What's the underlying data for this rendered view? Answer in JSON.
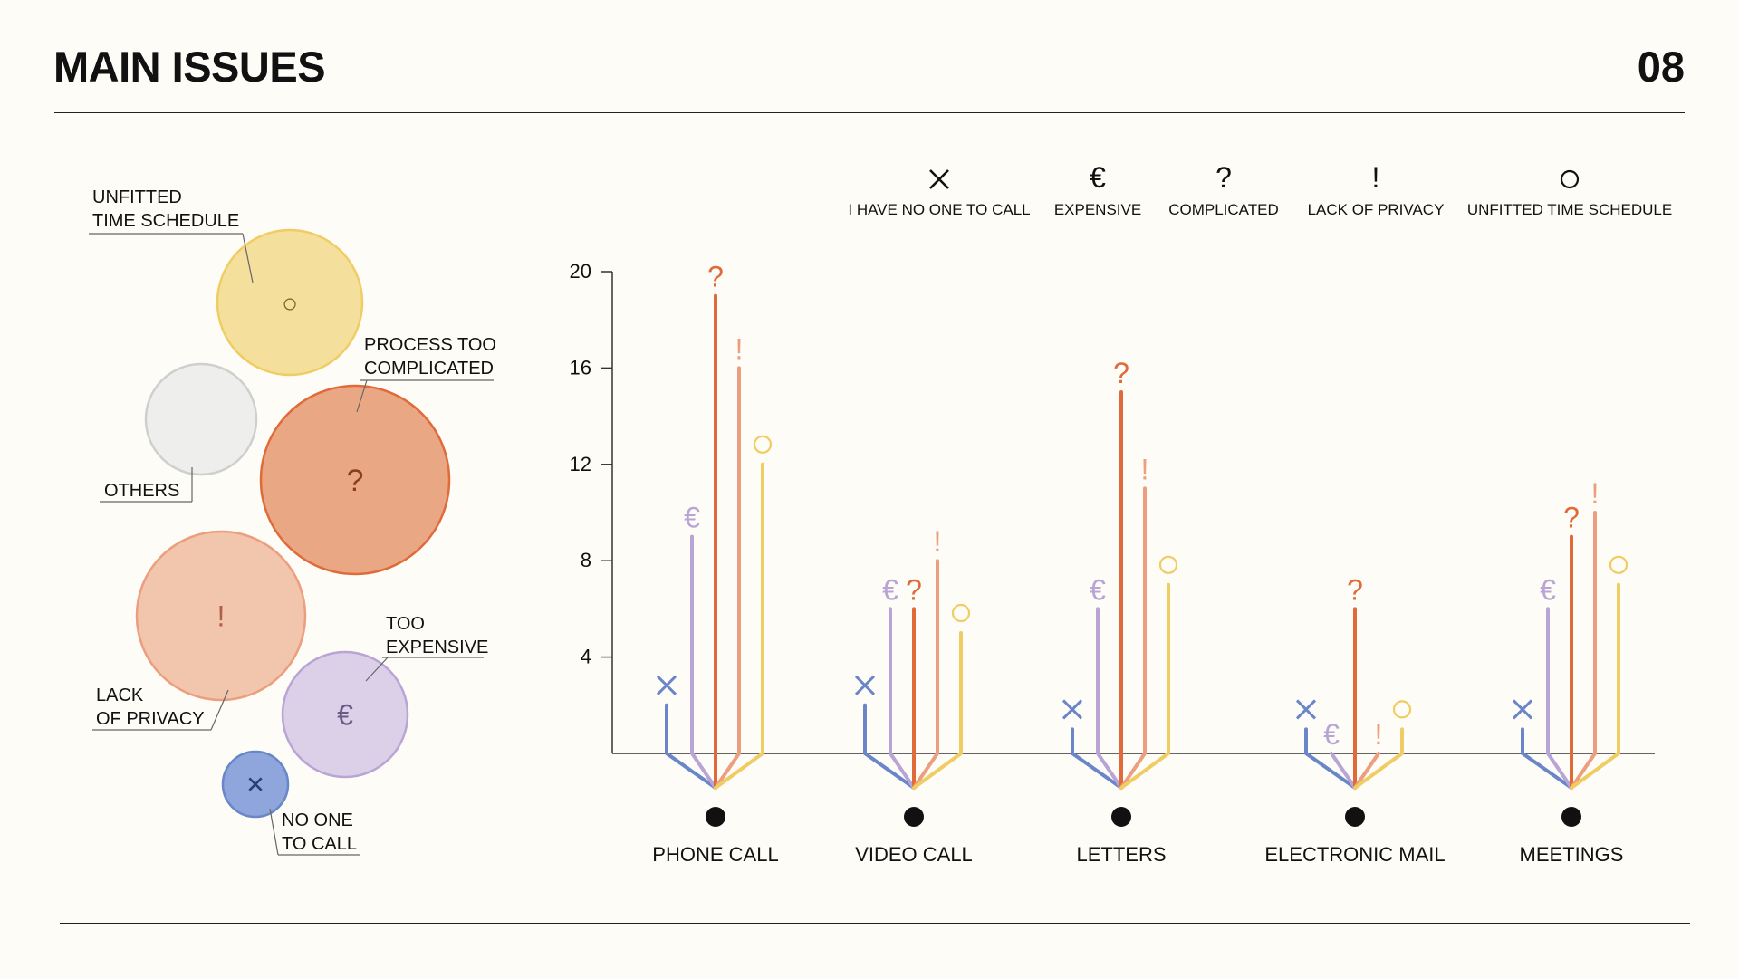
{
  "header": {
    "title": "MAIN ISSUES",
    "page_number": "08"
  },
  "colors": {
    "no_one": "#6a86c9",
    "expensive": "#b9a4d6",
    "complicated": "#e06a3a",
    "privacy": "#ec9e7e",
    "schedule": "#f0cc64",
    "others": "#cfcfcf",
    "axis": "#333333",
    "dot": "#111111"
  },
  "legend": [
    {
      "symbol": "✕",
      "label": "I HAVE NO ONE TO CALL"
    },
    {
      "symbol": "€",
      "label": "EXPENSIVE"
    },
    {
      "symbol": "?",
      "label": "COMPLICATED"
    },
    {
      "symbol": "!",
      "label": "LACK OF PRIVACY"
    },
    {
      "symbol": "○",
      "label": "UNFITTED TIME SCHEDULE"
    }
  ],
  "bubbles": [
    {
      "key": "schedule",
      "symbol": "○",
      "label_lines": [
        "UNFITTED",
        "TIME SCHEDULE"
      ]
    },
    {
      "key": "others",
      "symbol": "",
      "label_lines": [
        "OTHERS"
      ]
    },
    {
      "key": "complicated",
      "symbol": "?",
      "label_lines": [
        "PROCESS TOO",
        "COMPLICATED"
      ]
    },
    {
      "key": "privacy",
      "symbol": "!",
      "label_lines": [
        "LACK",
        "OF PRIVACY"
      ]
    },
    {
      "key": "expensive",
      "symbol": "€",
      "label_lines": [
        "TOO",
        "EXPENSIVE"
      ]
    },
    {
      "key": "no_one",
      "symbol": "✕",
      "label_lines": [
        "NO ONE",
        "TO CALL"
      ]
    }
  ],
  "chart_data": {
    "type": "bar",
    "title": "",
    "xlabel": "",
    "ylabel": "",
    "ylim": [
      0,
      20
    ],
    "yticks": [
      4,
      8,
      12,
      16,
      20
    ],
    "categories": [
      "PHONE CALL",
      "VIDEO CALL",
      "LETTERS",
      "ELECTRONIC MAIL",
      "MEETINGS"
    ],
    "series": [
      {
        "name": "I HAVE NO ONE TO CALL",
        "key": "no_one",
        "symbol": "✕",
        "values": [
          2,
          2,
          1,
          1,
          1
        ]
      },
      {
        "name": "EXPENSIVE",
        "key": "expensive",
        "symbol": "€",
        "values": [
          9,
          6,
          6,
          0,
          6
        ]
      },
      {
        "name": "COMPLICATED",
        "key": "complicated",
        "symbol": "?",
        "values": [
          19,
          6,
          15,
          6,
          9
        ]
      },
      {
        "name": "LACK OF PRIVACY",
        "key": "privacy",
        "symbol": "!",
        "values": [
          16,
          8,
          11,
          0,
          10
        ]
      },
      {
        "name": "UNFITTED TIME SCHEDULE",
        "key": "schedule",
        "symbol": "○",
        "values": [
          12,
          5,
          7,
          1,
          7
        ]
      }
    ],
    "grid": false,
    "legend_position": "top"
  }
}
